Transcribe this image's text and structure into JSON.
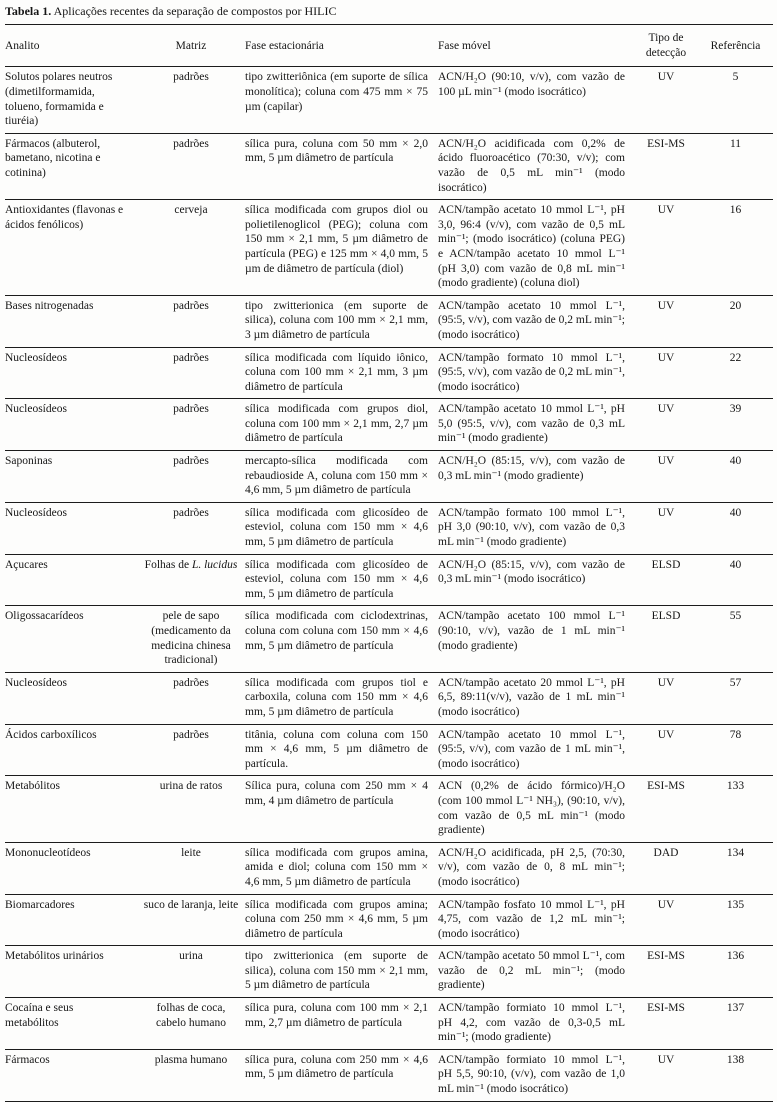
{
  "table": {
    "title_label": "Tabela 1.",
    "title_text": "Aplicações recentes da separação de compostos por HILIC",
    "columns": [
      "Analito",
      "Matriz",
      "Fase estacionária",
      "Fase móvel",
      "Tipo de detecção",
      "Referência"
    ],
    "rows": [
      {
        "analito": "Solutos polares neutros (dimetilformamida, tolueno, formamida e tiuréia)",
        "matriz": "padrões",
        "fase_estacionaria": "tipo zwitteriônica (em suporte de sílica monolítica); coluna com 475 mm × 75 µm (capilar)",
        "fase_movel": "ACN/H₂O (90:10, v/v), com vazão de 100 µL min⁻¹ (modo isocrático)",
        "deteccao": "UV",
        "referencia": "5"
      },
      {
        "analito": "Fármacos (albuterol, bametano, nicotina e cotinina)",
        "matriz": "padrões",
        "fase_estacionaria": "sílica pura, coluna com 50 mm × 2,0 mm, 5 µm diâmetro de partícula",
        "fase_movel": "ACN/H₂O acidificada com 0,2% de ácido fluoroacético (70:30, v/v); com vazão de 0,5 mL min⁻¹ (modo isocrático)",
        "deteccao": "ESI-MS",
        "referencia": "11"
      },
      {
        "analito": "Antioxidantes (flavonas e ácidos fenólicos)",
        "matriz": "cerveja",
        "fase_estacionaria": "sílica modificada com grupos diol ou polietilenoglicol (PEG); coluna com 150 mm × 2,1 mm, 5 µm diâmetro de partícula (PEG) e 125 mm × 4,0 mm, 5 µm de diâmetro de partícula (diol)",
        "fase_movel": "ACN/tampão acetato 10 mmol L⁻¹, pH 3,0, 96:4 (v/v), com vazão de 0,5 mL min⁻¹; (modo isocrático) (coluna PEG) e ACN/tampão acetato 10 mmol L⁻¹ (pH 3,0) com vazão de 0,8 mL min⁻¹ (modo gradiente) (coluna diol)",
        "deteccao": "UV",
        "referencia": "16"
      },
      {
        "analito": "Bases nitrogenadas",
        "matriz": "padrões",
        "fase_estacionaria": "tipo zwitterionica (em suporte de silica), coluna com 100 mm × 2,1 mm, 3 µm diâmetro de partícula",
        "fase_movel": "ACN/tampão acetato 10 mmol L⁻¹, (95:5, v/v), com vazão de 0,2 mL min⁻¹; (modo isocrático)",
        "deteccao": "UV",
        "referencia": "20"
      },
      {
        "analito": "Nucleosídeos",
        "matriz": "padrões",
        "fase_estacionaria": "sílica modificada com líquido iônico, coluna com 100 mm × 2,1 mm, 3 µm diâmetro de partícula",
        "fase_movel": "ACN/tampão formato 10 mmol L⁻¹, (95:5, v/v), com vazão de 0,2 mL min⁻¹, (modo isocrático)",
        "deteccao": "UV",
        "referencia": "22"
      },
      {
        "analito": "Nucleosídeos",
        "matriz": "padrões",
        "fase_estacionaria": "sílica modificada com grupos diol, coluna com 100 mm × 2,1 mm, 2,7 µm diâmetro de partícula",
        "fase_movel": "ACN/tampão acetato 10 mmol L⁻¹, pH 5,0 (95:5, v/v), com vazão de 0,3 mL min⁻¹ (modo gradiente)",
        "deteccao": "UV",
        "referencia": "39"
      },
      {
        "analito": "Saponinas",
        "matriz": "padrões",
        "fase_estacionaria": "mercapto-sílica modificada com rebaudioside A, coluna com 150 mm × 4,6 mm, 5 µm diâmetro de partícula",
        "fase_movel": "ACN/H₂O (85:15, v/v), com vazão de 0,3 mL min⁻¹ (modo gradiente)",
        "deteccao": "UV",
        "referencia": "40"
      },
      {
        "analito": "Nucleosídeos",
        "matriz": "padrões",
        "fase_estacionaria": "sílica modificada com glicosídeo de esteviol, coluna com 150 mm × 4,6 mm, 5 µm diâmetro de partícula",
        "fase_movel": "ACN/tampão formato 100 mmol L⁻¹, pH 3,0 (90:10, v/v), com vazão de 0,3 mL min⁻¹ (modo gradiente)",
        "deteccao": "UV",
        "referencia": "40"
      },
      {
        "analito": "Açucares",
        "matriz": "Folhas de *L. lucidus*",
        "fase_estacionaria": "sílica modificada com glicosídeo de esteviol, coluna com 150 mm × 4,6 mm, 5 µm diâmetro de partícula",
        "fase_movel": "ACN/H₂O (85:15, v/v), com vazão de 0,3 mL min⁻¹ (modo isocrático)",
        "deteccao": "ELSD",
        "referencia": "40"
      },
      {
        "analito": "Oligossacarídeos",
        "matriz": "pele de sapo (medicamento da medicina chinesa tradicional)",
        "fase_estacionaria": "sílica modificada com ciclodextrinas, coluna com coluna com 150 mm × 4,6 mm, 5 µm diâmetro de partícula",
        "fase_movel": "ACN/tampão acetato 100 mmol L⁻¹ (90:10, v/v), vazão de 1 mL min⁻¹ (modo gradiente)",
        "deteccao": "ELSD",
        "referencia": "55"
      },
      {
        "analito": "Nucleosídeos",
        "matriz": "padrões",
        "fase_estacionaria": "sílica modificada com grupos tiol e carboxila, coluna com 150 mm × 4,6 mm, 5 µm diâmetro de partícula",
        "fase_movel": "ACN/tampão acetato 20 mmol L⁻¹, pH 6,5, 89:11(v/v), vazão de 1 mL min⁻¹ (modo isocrático)",
        "deteccao": "UV",
        "referencia": "57"
      },
      {
        "analito": "Ácidos carboxílicos",
        "matriz": "padrões",
        "fase_estacionaria": "titânia, coluna com coluna com 150 mm × 4,6 mm, 5 µm diâmetro de partícula.",
        "fase_movel": "ACN/tampão acetato 10 mmol L⁻¹, (95:5, v/v), com vazão de 1 mL min⁻¹, (modo isocrático)",
        "deteccao": "UV",
        "referencia": "78"
      },
      {
        "analito": "Metabólitos",
        "matriz": "urina de ratos",
        "fase_estacionaria": "Sílica pura, coluna com 250 mm × 4 mm, 4 µm diâmetro de partícula",
        "fase_movel": "ACN (0,2% de ácido fórmico)/H₂O (com 100 mmol L⁻¹ NH₃), (90:10, v/v), com vazão de 0,5 mL min⁻¹ (modo gradiente)",
        "deteccao": "ESI-MS",
        "referencia": "133"
      },
      {
        "analito": "Mononucleotídeos",
        "matriz": "leite",
        "fase_estacionaria": "sílica modificada com grupos amina, amida e diol; coluna com 150 mm × 4,6 mm, 5 µm diâmetro de partícula",
        "fase_movel": "ACN/H₂O acidificada, pH 2,5, (70:30, v/v), com vazão de 0, 8 mL min⁻¹; (modo isocrático)",
        "deteccao": "DAD",
        "referencia": "134"
      },
      {
        "analito": "Biomarcadores",
        "matriz": "suco de laranja, leite",
        "fase_estacionaria": "sílica modificada com grupos amina; coluna com 250 mm × 4,6 mm, 5 µm diâmetro de partícula",
        "fase_movel": "ACN/tampão fosfato 10 mmol L⁻¹, pH 4,75, com vazão de 1,2 mL min⁻¹; (modo isocrático)",
        "deteccao": "UV",
        "referencia": "135"
      },
      {
        "analito": "Metabólitos urinários",
        "matriz": "urina",
        "fase_estacionaria": "tipo zwitterionica (em suporte de silica), coluna com 150 mm × 2,1 mm, 5 µm diâmetro de partícula",
        "fase_movel": "ACN/tampão acetato 50 mmol L⁻¹, com vazão de 0,2 mL min⁻¹; (modo gradiente)",
        "deteccao": "ESI-MS",
        "referencia": "136"
      },
      {
        "analito": "Cocaína e seus metabólitos",
        "matriz": "folhas de coca, cabelo humano",
        "fase_estacionaria": "sílica pura, coluna com 100 mm × 2,1 mm, 2,7 µm diâmetro de partícula",
        "fase_movel": "ACN/tampão formiato 10 mmol L⁻¹, pH 4,2, com vazão de 0,3-0,5 mL min⁻¹; (modo gradiente)",
        "deteccao": "ESI-MS",
        "referencia": "137"
      },
      {
        "analito": "Fármacos",
        "matriz": "plasma humano",
        "fase_estacionaria": "sílica pura, coluna com 250 mm × 4,6 mm, 5 µm diâmetro de partícula",
        "fase_movel": "ACN/tampão formiato 10 mmol L⁻¹, pH 5,5, 90:10, (v/v), com vazão de 1,0 mL min⁻¹ (modo isocrático)",
        "deteccao": "UV",
        "referencia": "138"
      }
    ]
  }
}
